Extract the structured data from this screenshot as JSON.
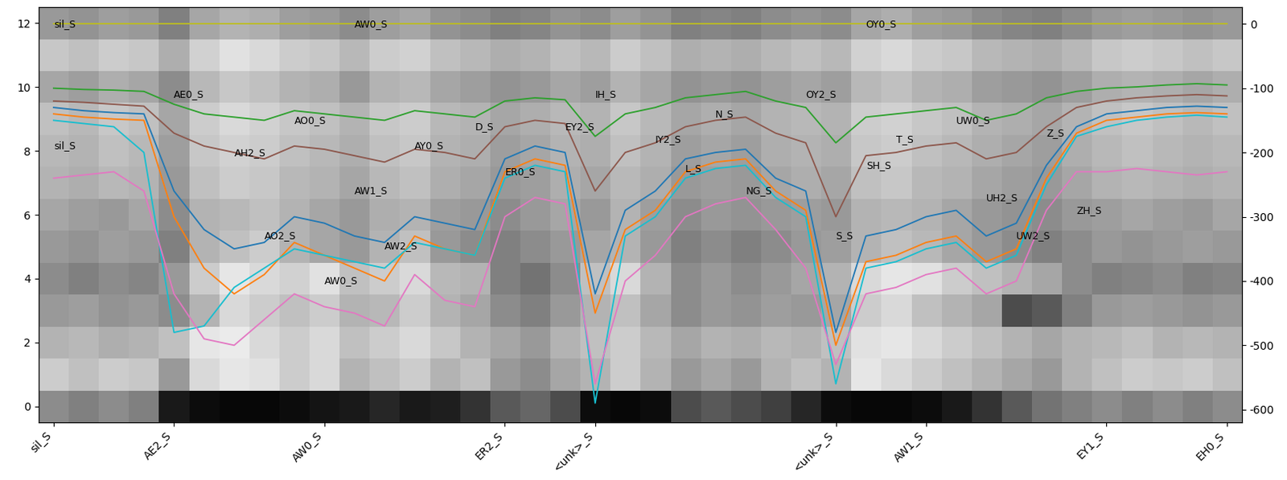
{
  "chart_data": {
    "type": "line",
    "categories": [
      "sil_S",
      null,
      null,
      null,
      "AE2_S",
      null,
      null,
      null,
      null,
      "AW0_S",
      null,
      null,
      null,
      null,
      null,
      "ER2_S",
      null,
      null,
      "<unk>_S",
      null,
      null,
      null,
      null,
      null,
      null,
      null,
      "<unk>_S",
      null,
      null,
      "AW1_S",
      null,
      null,
      null,
      null,
      null,
      "EY1_S",
      null,
      null,
      null,
      "EH0_S"
    ],
    "ylim": [
      -0.5,
      12.5
    ],
    "yticks": [
      0,
      2,
      4,
      6,
      8,
      10,
      12
    ],
    "y2lim": [
      -620,
      26
    ],
    "y2ticks": [
      0,
      -100,
      -200,
      -300,
      -400,
      -500,
      -600
    ],
    "heatmap": {
      "range": [
        0,
        1
      ],
      "cells": [
        [
          0.55,
          0.5,
          0.55,
          0.5,
          0.1,
          0.05,
          0.03,
          0.03,
          0.05,
          0.08,
          0.1,
          0.15,
          0.1,
          0.12,
          0.2,
          0.35,
          0.4,
          0.3,
          0.05,
          0.03,
          0.05,
          0.3,
          0.35,
          0.3,
          0.25,
          0.15,
          0.05,
          0.03,
          0.03,
          0.05,
          0.1,
          0.2,
          0.35,
          0.45,
          0.5,
          0.55,
          0.5,
          0.55,
          0.5,
          0.55
        ],
        [
          0.8,
          0.75,
          0.8,
          0.78,
          0.6,
          0.85,
          0.9,
          0.88,
          0.8,
          0.85,
          0.7,
          0.75,
          0.8,
          0.7,
          0.75,
          0.6,
          0.55,
          0.65,
          0.7,
          0.8,
          0.7,
          0.6,
          0.65,
          0.6,
          0.7,
          0.75,
          0.7,
          0.9,
          0.85,
          0.8,
          0.75,
          0.7,
          0.65,
          0.6,
          0.7,
          0.75,
          0.8,
          0.78,
          0.8,
          0.75
        ],
        [
          0.7,
          0.72,
          0.68,
          0.7,
          0.75,
          0.9,
          0.92,
          0.85,
          0.8,
          0.85,
          0.75,
          0.8,
          0.85,
          0.78,
          0.7,
          0.65,
          0.6,
          0.7,
          0.75,
          0.8,
          0.72,
          0.65,
          0.7,
          0.68,
          0.72,
          0.7,
          0.75,
          0.88,
          0.9,
          0.85,
          0.8,
          0.75,
          0.7,
          0.65,
          0.7,
          0.72,
          0.75,
          0.7,
          0.72,
          0.7
        ],
        [
          0.6,
          0.62,
          0.58,
          0.6,
          0.55,
          0.7,
          0.85,
          0.8,
          0.75,
          0.8,
          0.7,
          0.72,
          0.8,
          0.7,
          0.65,
          0.55,
          0.5,
          0.6,
          0.7,
          0.75,
          0.65,
          0.55,
          0.6,
          0.58,
          0.62,
          0.6,
          0.65,
          0.8,
          0.85,
          0.75,
          0.7,
          0.65,
          0.3,
          0.35,
          0.5,
          0.6,
          0.62,
          0.6,
          0.58,
          0.6
        ],
        [
          0.55,
          0.5,
          0.55,
          0.52,
          0.6,
          0.8,
          0.9,
          0.85,
          0.82,
          0.88,
          0.75,
          0.8,
          0.85,
          0.72,
          0.7,
          0.5,
          0.45,
          0.55,
          0.75,
          0.85,
          0.7,
          0.55,
          0.6,
          0.55,
          0.6,
          0.65,
          0.7,
          0.85,
          0.9,
          0.88,
          0.8,
          0.75,
          0.7,
          0.65,
          0.55,
          0.5,
          0.52,
          0.55,
          0.5,
          0.52
        ],
        [
          0.6,
          0.58,
          0.62,
          0.6,
          0.5,
          0.7,
          0.75,
          0.8,
          0.7,
          0.65,
          0.6,
          0.7,
          0.75,
          0.6,
          0.55,
          0.5,
          0.55,
          0.6,
          0.65,
          0.7,
          0.6,
          0.5,
          0.55,
          0.5,
          0.55,
          0.6,
          0.62,
          0.7,
          0.75,
          0.72,
          0.65,
          0.6,
          0.55,
          0.5,
          0.55,
          0.6,
          0.58,
          0.6,
          0.62,
          0.6
        ],
        [
          0.65,
          0.62,
          0.6,
          0.65,
          0.55,
          0.7,
          0.72,
          0.75,
          0.7,
          0.65,
          0.6,
          0.68,
          0.7,
          0.62,
          0.6,
          0.55,
          0.6,
          0.65,
          0.6,
          0.7,
          0.62,
          0.55,
          0.6,
          0.58,
          0.6,
          0.62,
          0.6,
          0.7,
          0.72,
          0.7,
          0.65,
          0.6,
          0.58,
          0.55,
          0.6,
          0.62,
          0.65,
          0.62,
          0.6,
          0.65
        ],
        [
          0.7,
          0.68,
          0.72,
          0.7,
          0.6,
          0.75,
          0.8,
          0.78,
          0.72,
          0.7,
          0.65,
          0.72,
          0.75,
          0.68,
          0.65,
          0.6,
          0.62,
          0.68,
          0.65,
          0.72,
          0.68,
          0.6,
          0.62,
          0.6,
          0.65,
          0.68,
          0.65,
          0.75,
          0.78,
          0.72,
          0.7,
          0.65,
          0.62,
          0.6,
          0.65,
          0.7,
          0.72,
          0.7,
          0.68,
          0.7
        ],
        [
          0.72,
          0.7,
          0.75,
          0.72,
          0.62,
          0.78,
          0.82,
          0.8,
          0.75,
          0.72,
          0.68,
          0.75,
          0.78,
          0.7,
          0.68,
          0.62,
          0.65,
          0.7,
          0.68,
          0.75,
          0.7,
          0.62,
          0.65,
          0.62,
          0.68,
          0.7,
          0.68,
          0.78,
          0.8,
          0.75,
          0.72,
          0.68,
          0.65,
          0.62,
          0.68,
          0.72,
          0.75,
          0.72,
          0.7,
          0.72
        ],
        [
          0.75,
          0.72,
          0.78,
          0.75,
          0.65,
          0.8,
          0.85,
          0.82,
          0.78,
          0.75,
          0.7,
          0.78,
          0.8,
          0.72,
          0.7,
          0.65,
          0.68,
          0.72,
          0.7,
          0.78,
          0.72,
          0.65,
          0.68,
          0.65,
          0.7,
          0.72,
          0.7,
          0.8,
          0.82,
          0.78,
          0.75,
          0.7,
          0.68,
          0.65,
          0.7,
          0.75,
          0.78,
          0.75,
          0.72,
          0.75
        ],
        [
          0.65,
          0.62,
          0.68,
          0.65,
          0.55,
          0.72,
          0.78,
          0.75,
          0.7,
          0.68,
          0.6,
          0.7,
          0.72,
          0.65,
          0.62,
          0.58,
          0.6,
          0.65,
          0.62,
          0.7,
          0.65,
          0.58,
          0.6,
          0.58,
          0.62,
          0.65,
          0.62,
          0.72,
          0.75,
          0.7,
          0.68,
          0.62,
          0.6,
          0.58,
          0.62,
          0.68,
          0.7,
          0.68,
          0.65,
          0.68
        ],
        [
          0.78,
          0.75,
          0.8,
          0.78,
          0.68,
          0.82,
          0.88,
          0.85,
          0.8,
          0.78,
          0.72,
          0.8,
          0.82,
          0.75,
          0.72,
          0.68,
          0.7,
          0.75,
          0.72,
          0.8,
          0.75,
          0.68,
          0.7,
          0.68,
          0.72,
          0.75,
          0.72,
          0.82,
          0.85,
          0.8,
          0.78,
          0.72,
          0.7,
          0.68,
          0.72,
          0.78,
          0.8,
          0.78,
          0.75,
          0.78
        ],
        [
          0.6,
          0.58,
          0.62,
          0.6,
          0.5,
          0.65,
          0.7,
          0.68,
          0.62,
          0.6,
          0.55,
          0.62,
          0.65,
          0.58,
          0.55,
          0.5,
          0.52,
          0.58,
          0.55,
          0.62,
          0.58,
          0.5,
          0.52,
          0.5,
          0.55,
          0.58,
          0.55,
          0.65,
          0.68,
          0.62,
          0.6,
          0.55,
          0.52,
          0.5,
          0.55,
          0.6,
          0.62,
          0.6,
          0.58,
          0.6
        ]
      ]
    },
    "series": [
      {
        "color": "#bcbd22",
        "axis": "y2",
        "values": [
          0,
          0,
          0,
          0,
          0,
          0,
          0,
          0,
          0,
          0,
          0,
          0,
          0,
          0,
          0,
          0,
          0,
          0,
          0,
          0,
          0,
          0,
          0,
          0,
          0,
          0,
          0,
          0,
          0,
          0,
          0,
          0,
          0,
          0,
          0,
          0,
          0,
          0,
          0,
          0
        ]
      },
      {
        "color": "#2ca02c",
        "axis": "y2",
        "values": [
          -100,
          -102,
          -103,
          -105,
          -125,
          -140,
          -145,
          -150,
          -135,
          -140,
          -145,
          -150,
          -135,
          -140,
          -145,
          -120,
          -115,
          -118,
          -175,
          -140,
          -130,
          -115,
          -110,
          -105,
          -120,
          -130,
          -185,
          -145,
          -140,
          -135,
          -130,
          -150,
          -140,
          -115,
          -105,
          -100,
          -98,
          -95,
          -93,
          -95
        ]
      },
      {
        "color": "#8c564b",
        "axis": "y2",
        "values": [
          -120,
          -122,
          -125,
          -128,
          -170,
          -190,
          -200,
          -210,
          -190,
          -195,
          -205,
          -215,
          -195,
          -200,
          -210,
          -160,
          -150,
          -155,
          -260,
          -200,
          -185,
          -160,
          -150,
          -145,
          -170,
          -185,
          -300,
          -205,
          -200,
          -190,
          -185,
          -210,
          -200,
          -160,
          -130,
          -120,
          -115,
          -112,
          -110,
          -112
        ]
      },
      {
        "color": "#1f77b4",
        "axis": "y2",
        "values": [
          -130,
          -135,
          -138,
          -140,
          -260,
          -320,
          -350,
          -340,
          -300,
          -310,
          -330,
          -340,
          -300,
          -310,
          -320,
          -210,
          -190,
          -200,
          -420,
          -290,
          -260,
          -210,
          -200,
          -195,
          -240,
          -260,
          -480,
          -330,
          -320,
          -300,
          -290,
          -330,
          -310,
          -220,
          -160,
          -140,
          -135,
          -130,
          -128,
          -130
        ]
      },
      {
        "color": "#ff7f0e",
        "axis": "y2",
        "values": [
          -140,
          -145,
          -148,
          -150,
          -300,
          -380,
          -420,
          -390,
          -340,
          -360,
          -380,
          -400,
          -330,
          -350,
          -360,
          -230,
          -210,
          -220,
          -450,
          -320,
          -290,
          -230,
          -215,
          -210,
          -260,
          -290,
          -500,
          -370,
          -360,
          -340,
          -330,
          -370,
          -350,
          -240,
          -170,
          -150,
          -145,
          -140,
          -138,
          -140
        ]
      },
      {
        "color": "#17becf",
        "axis": "y2",
        "values": [
          -150,
          -155,
          -160,
          -200,
          -480,
          -470,
          -410,
          -380,
          -350,
          -360,
          -370,
          -380,
          -340,
          -350,
          -360,
          -240,
          -220,
          -230,
          -590,
          -330,
          -300,
          -240,
          -225,
          -220,
          -270,
          -300,
          -560,
          -380,
          -370,
          -350,
          -340,
          -380,
          -360,
          -250,
          -175,
          -160,
          -150,
          -145,
          -142,
          -145
        ]
      },
      {
        "color": "#e377c2",
        "axis": "y2",
        "values": [
          -240,
          -235,
          -230,
          -260,
          -420,
          -490,
          -500,
          -460,
          -420,
          -440,
          -450,
          -470,
          -390,
          -430,
          -440,
          -300,
          -270,
          -280,
          -560,
          -400,
          -360,
          -300,
          -280,
          -270,
          -320,
          -380,
          -530,
          -420,
          -410,
          -390,
          -380,
          -420,
          -400,
          -290,
          -230,
          -230,
          -225,
          -230,
          -235,
          -230
        ]
      }
    ],
    "annotations": [
      {
        "text": "sil_S",
        "x": 0,
        "y": 0
      },
      {
        "text": "AW0_S",
        "x": 10,
        "y": 0
      },
      {
        "text": "OY0_S",
        "x": 27,
        "y": 0
      },
      {
        "text": "sil_S",
        "x": 0,
        "y": -190
      },
      {
        "text": "AE0_S",
        "x": 4,
        "y": -110
      },
      {
        "text": "AH2_S",
        "x": 6,
        "y": -200
      },
      {
        "text": "AO2_S",
        "x": 7,
        "y": -330
      },
      {
        "text": "AO0_S",
        "x": 8,
        "y": -150
      },
      {
        "text": "AW0_S",
        "x": 9,
        "y": -400
      },
      {
        "text": "AW1_S",
        "x": 10,
        "y": -260
      },
      {
        "text": "AW2_S",
        "x": 11,
        "y": -345
      },
      {
        "text": "AY0_S",
        "x": 12,
        "y": -190
      },
      {
        "text": "D_S",
        "x": 14,
        "y": -160
      },
      {
        "text": "ER0_S",
        "x": 15,
        "y": -230
      },
      {
        "text": "EY2_S",
        "x": 17,
        "y": -160
      },
      {
        "text": "IH_S",
        "x": 18,
        "y": -110
      },
      {
        "text": "IY2_S",
        "x": 20,
        "y": -180
      },
      {
        "text": "L_S",
        "x": 21,
        "y": -225
      },
      {
        "text": "N_S",
        "x": 22,
        "y": -140
      },
      {
        "text": "NG_S",
        "x": 23,
        "y": -260
      },
      {
        "text": "OY2_S",
        "x": 25,
        "y": -110
      },
      {
        "text": "S_S",
        "x": 26,
        "y": -330
      },
      {
        "text": "SH_S",
        "x": 27,
        "y": -220
      },
      {
        "text": "T_S",
        "x": 28,
        "y": -180
      },
      {
        "text": "UW0_S",
        "x": 30,
        "y": -150
      },
      {
        "text": "UH2_S",
        "x": 31,
        "y": -270
      },
      {
        "text": "UW2_S",
        "x": 32,
        "y": -330
      },
      {
        "text": "Z_S",
        "x": 33,
        "y": -170
      },
      {
        "text": "ZH_S",
        "x": 34,
        "y": -290
      }
    ]
  }
}
